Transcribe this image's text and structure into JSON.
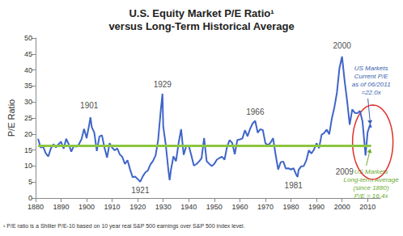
{
  "chart_data": {
    "type": "line",
    "title": "U.S. Equity Market P/E Ratio¹\nversus Long-Term Historical Average",
    "ylabel": "P/E Ratio",
    "color": "#3f65c8",
    "x": [
      1881,
      1882,
      1883,
      1884,
      1885,
      1886,
      1887,
      1888,
      1889,
      1890,
      1891,
      1892,
      1893,
      1894,
      1895,
      1896,
      1897,
      1898,
      1899,
      1900,
      1901,
      1901.5,
      1902,
      1903,
      1904,
      1905,
      1906,
      1907,
      1908,
      1909,
      1910,
      1911,
      1912,
      1913,
      1914,
      1915,
      1916,
      1917,
      1918,
      1919,
      1920,
      1921,
      1922,
      1923,
      1924,
      1925,
      1926,
      1927,
      1928,
      1929,
      1929.7,
      1930,
      1931,
      1932,
      1932.5,
      1933,
      1934,
      1935,
      1936,
      1937,
      1938,
      1939,
      1940,
      1941,
      1942,
      1943,
      1944,
      1945,
      1946,
      1947,
      1948,
      1949,
      1950,
      1951,
      1952,
      1953,
      1954,
      1955,
      1956,
      1957,
      1958,
      1959,
      1960,
      1961,
      1962,
      1963,
      1964,
      1965,
      1966,
      1967,
      1968,
      1969,
      1970,
      1971,
      1972,
      1973,
      1974,
      1975,
      1976,
      1977,
      1978,
      1979,
      1980,
      1981,
      1982,
      1982.6,
      1983,
      1984,
      1985,
      1986,
      1987,
      1988,
      1989,
      1990,
      1991,
      1992,
      1993,
      1994,
      1995,
      1996,
      1997,
      1998,
      1999,
      2000,
      2001,
      2002,
      2003,
      2004,
      2005,
      2006,
      2007,
      2008,
      2009,
      2009.2,
      2010,
      2011,
      2011.4
    ],
    "values": [
      18.5,
      15.8,
      16.0,
      14.0,
      13.0,
      15.5,
      16.8,
      15.8,
      16.8,
      17.6,
      15.4,
      18.5,
      16.8,
      14.5,
      16.3,
      16.0,
      16.8,
      18.4,
      21.6,
      18.7,
      22.9,
      25.2,
      22.2,
      20.4,
      14.7,
      19.2,
      19.6,
      15.7,
      12.6,
      17.1,
      15.7,
      14.9,
      15.5,
      13.6,
      12.8,
      10.6,
      11.8,
      9.0,
      6.5,
      6.7,
      5.9,
      5.1,
      6.8,
      8.0,
      8.6,
      10.5,
      11.6,
      13.3,
      18.1,
      27.1,
      32.6,
      22.3,
      16.6,
      8.8,
      5.6,
      8.7,
      13.0,
      11.5,
      17.1,
      21.5,
      13.5,
      16.2,
      16.3,
      13.3,
      10.1,
      10.6,
      11.4,
      12.4,
      18.7,
      11.5,
      10.7,
      10.0,
      10.7,
      12.0,
      12.5,
      12.9,
      12.0,
      16.1,
      18.1,
      17.2,
      13.7,
      18.1,
      18.3,
      18.6,
      21.2,
      19.3,
      21.6,
      23.3,
      24.1,
      20.4,
      21.5,
      21.2,
      17.1,
      16.5,
      17.3,
      18.7,
      13.5,
      8.9,
      11.2,
      11.4,
      9.2,
      9.3,
      8.9,
      9.3,
      7.4,
      6.6,
      8.8,
      9.9,
      10.0,
      11.7,
      14.9,
      13.9,
      15.1,
      17.1,
      15.6,
      19.8,
      20.3,
      21.4,
      19.9,
      24.8,
      28.3,
      32.9,
      40.6,
      44.2,
      36.7,
      30.3,
      22.9,
      27.7,
      26.6,
      26.5,
      27.2,
      24.0,
      15.2,
      13.3,
      20.5,
      23.0,
      22.0
    ],
    "xlim": [
      1880,
      2015
    ],
    "xticks": [
      1880,
      1890,
      1900,
      1910,
      1920,
      1930,
      1940,
      1950,
      1960,
      1970,
      1980,
      1990,
      2000,
      2010
    ],
    "ylim": [
      0,
      50
    ],
    "yticks": [
      0,
      5,
      10,
      15,
      20,
      25,
      30,
      35,
      40,
      45,
      50
    ],
    "grid": false,
    "reference_line": {
      "value": 16.4,
      "color": "#8cc63f"
    },
    "annotations": [
      {
        "text": "1901",
        "x": 1901,
        "y": 29
      },
      {
        "text": "1921",
        "x": 1921,
        "y": 2.5
      },
      {
        "text": "1929",
        "x": 1929.7,
        "y": 35.5
      },
      {
        "text": "1966",
        "x": 1966,
        "y": 27
      },
      {
        "text": "1981",
        "x": 1981,
        "y": 4
      },
      {
        "text": "2000",
        "x": 2000,
        "y": 47.5
      },
      {
        "text": "2009",
        "x": 2001,
        "y": 8.3
      }
    ],
    "callouts": [
      {
        "text": "US Markets\nCurrent P/E\nas of 06/2011\n=22.0x",
        "x": 2011.4,
        "y": 22.0,
        "color": "#3a5fad"
      },
      {
        "text": "US Markets\nLong-term Average\n(since 1880)\nP/E = 16.4x",
        "x": 2011.4,
        "y": 16.4,
        "color": "#6aab2e"
      }
    ],
    "footnote": "¹ P/E ratio is a Shiller P/E-10 based on 10 year real S&P 500 earnings over S&P 500 index level."
  }
}
